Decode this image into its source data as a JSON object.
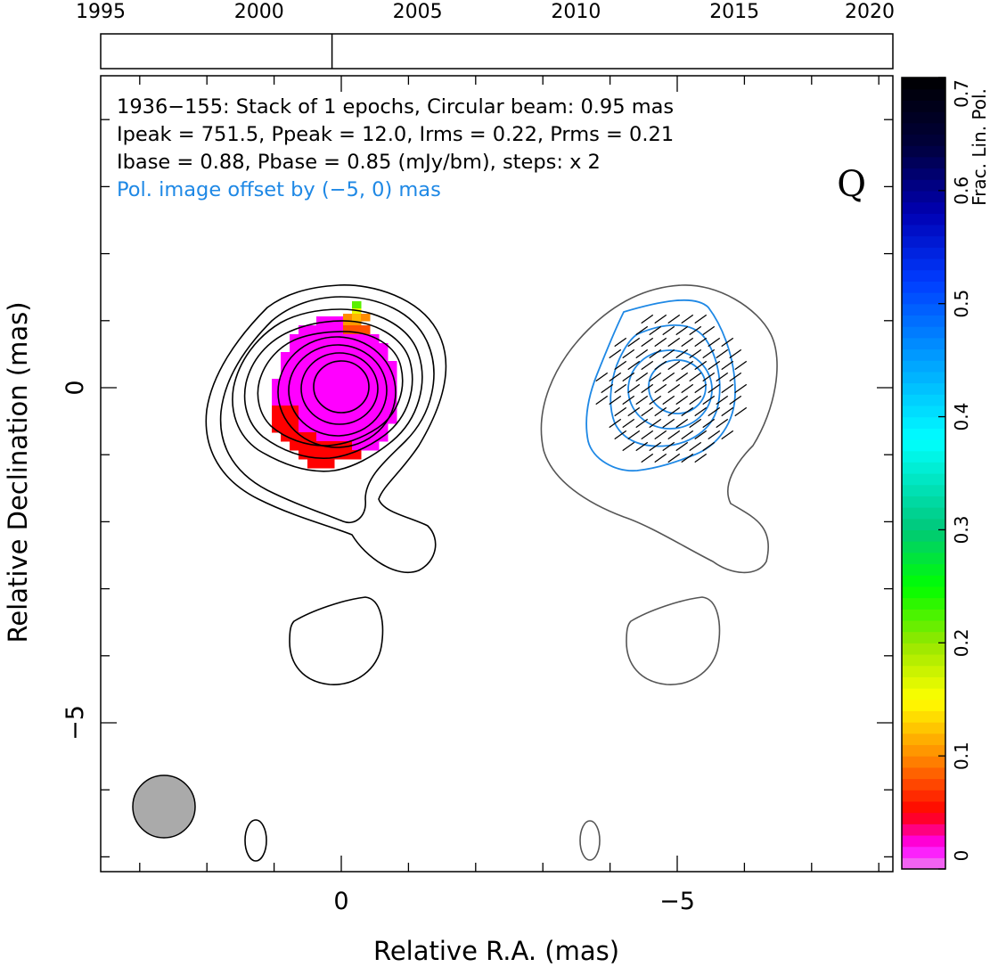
{
  "chart_data": {
    "type": "contour",
    "source": "1936−155",
    "info_lines": [
      "1936−155: Stack of 1 epochs, Circular beam: 0.95 mas",
      "Ipeak = 751.5, Ppeak = 12.0, Irms = 0.22, Prms = 0.21",
      "Ibase = 0.88, Pbase = 0.85 (mJy/bm), steps: x 2"
    ],
    "offset_note": "Pol. image offset by (−5, 0) mas",
    "offset_note_color": "#1e88e5",
    "quality_flag": "Q",
    "xlabel": "Relative R.A. (mas)",
    "ylabel": "Relative Declination (mas)",
    "xlim": [
      3.5,
      -8.3
    ],
    "ylim": [
      -7.1,
      4.5
    ],
    "x_tick_labels": [
      {
        "value": 0,
        "label": "0"
      },
      {
        "value": -5,
        "label": "−5"
      }
    ],
    "y_tick_labels": [
      {
        "value": 0,
        "label": "0"
      },
      {
        "value": -5,
        "label": "−5"
      }
    ],
    "beam": {
      "diameter_mas": 0.95,
      "center": [
        2.6,
        -6.25
      ],
      "color": "#aaaaaa"
    },
    "epoch_axis": {
      "range": [
        1995,
        2020
      ],
      "tick_labels": [
        "1995",
        "2000",
        "2005",
        "2010",
        "2015",
        "2020"
      ],
      "epochs": [
        2002.3
      ]
    },
    "colorbar": {
      "label": "Frac. Lin. Pol.",
      "range": [
        0,
        0.7
      ],
      "tick_labels": [
        "0",
        "0.1",
        "0.2",
        "0.3",
        "0.4",
        "0.5",
        "0.6",
        "0.7"
      ]
    },
    "stokes_i_contour_color": "#000000",
    "pol_offset_contour_color": "#555555",
    "pol_contour_color": "#1e88e5"
  }
}
